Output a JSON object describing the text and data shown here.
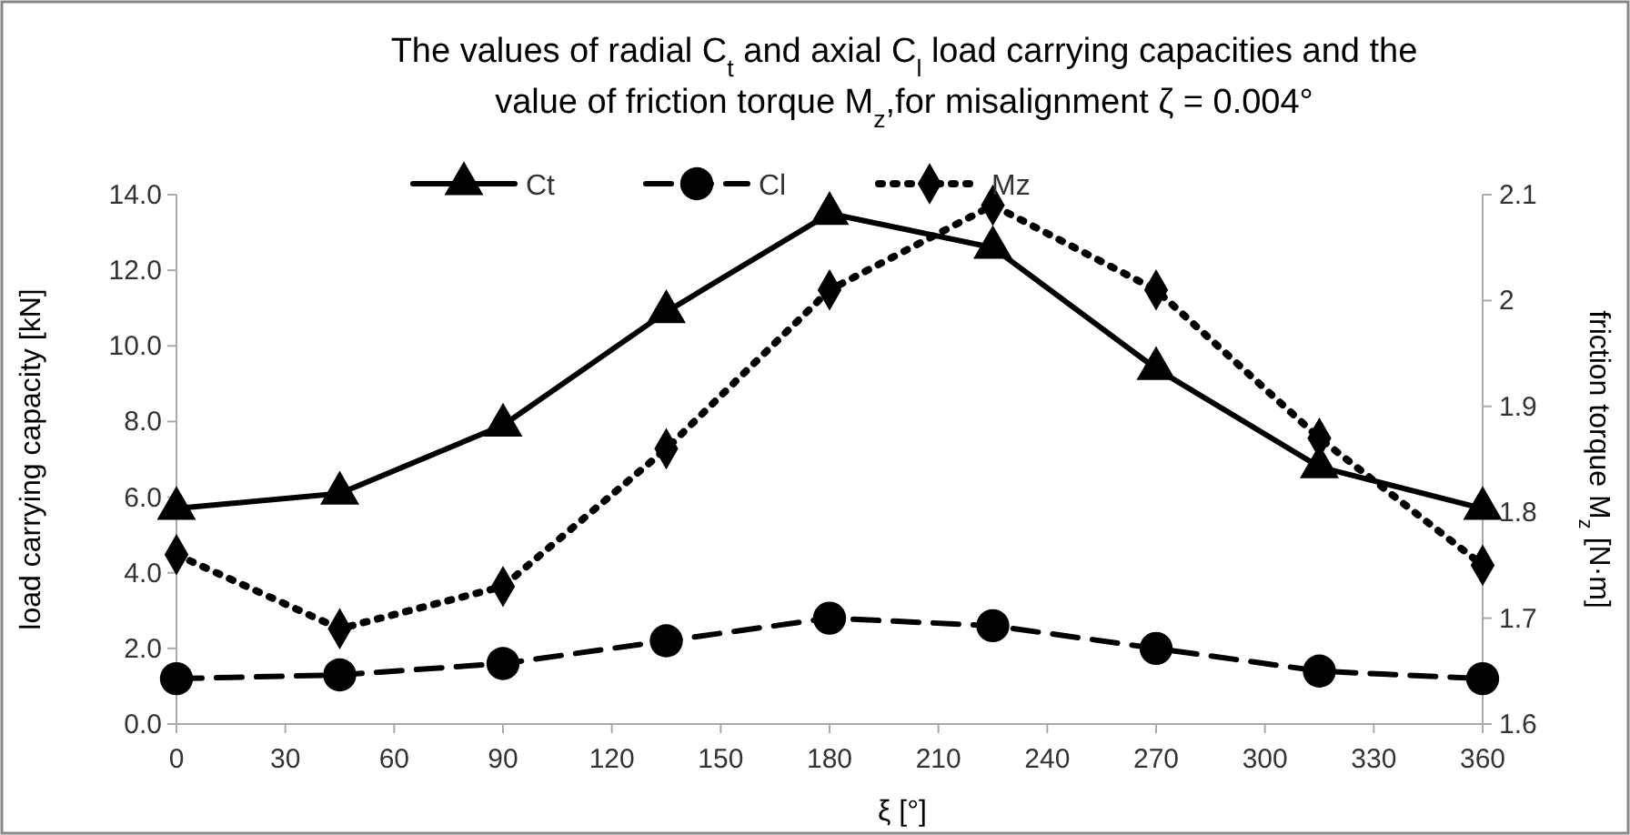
{
  "chart_data": {
    "type": "line",
    "title": "The values of radial C$_{t}$ and axial  C$_{l}$ load carrying capacities and the\nvalue of friction torque M$_{z}$,for misalignment ζ = 0.004°",
    "xlabel": "ξ [°]",
    "ylabel": "load carrying capacity [kN]",
    "y2label": "friction torque M$_{z}$ [N·m]",
    "x": [
      0,
      45,
      90,
      135,
      180,
      225,
      270,
      315,
      360
    ],
    "xlim": [
      0,
      360
    ],
    "xticks": [
      0,
      30,
      60,
      90,
      120,
      150,
      180,
      210,
      240,
      270,
      300,
      330,
      360
    ],
    "ylim": [
      0,
      14
    ],
    "yticks": [
      {
        "value": 0,
        "label": "0.0"
      },
      {
        "value": 2,
        "label": "2.0"
      },
      {
        "value": 4,
        "label": "4.0"
      },
      {
        "value": 6,
        "label": "6.0"
      },
      {
        "value": 8,
        "label": "8.0"
      },
      {
        "value": 10,
        "label": "10.0"
      },
      {
        "value": 12,
        "label": "12.0"
      },
      {
        "value": 14,
        "label": "14.0"
      }
    ],
    "y2lim": [
      1.6,
      2.1
    ],
    "y2ticks": [
      1.6,
      1.7,
      1.8,
      1.9,
      2,
      2.1
    ],
    "legend": "top",
    "grid": false,
    "series": [
      {
        "name": "Ct",
        "color": "#000000",
        "marker": "triangle",
        "line_style": "solid",
        "values": [
          5.7,
          6.1,
          7.9,
          10.9,
          13.5,
          12.6,
          9.4,
          6.8,
          5.7
        ]
      },
      {
        "name": "Cl",
        "color": "#000000",
        "marker": "circle",
        "line_style": "dashed",
        "values": [
          1.2,
          1.3,
          1.6,
          2.2,
          2.8,
          2.6,
          2.0,
          1.4,
          1.2
        ]
      },
      {
        "name": "Mz",
        "color": "#000000",
        "marker": "diamond",
        "line_style": "dotted",
        "axis": "y2",
        "values": [
          1.76,
          1.69,
          1.73,
          1.86,
          2.01,
          2.09,
          2.01,
          1.87,
          1.75
        ]
      }
    ]
  }
}
